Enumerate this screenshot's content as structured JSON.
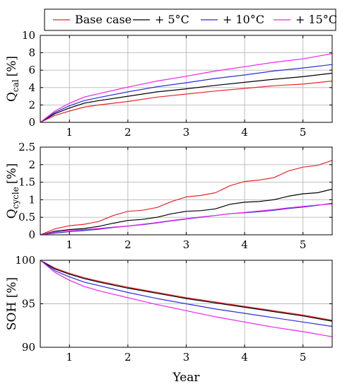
{
  "legend": {
    "position": "top",
    "entries": [
      {
        "label": "Base case",
        "color": "#e8262b"
      },
      {
        "label": "+ 5°C",
        "color": "#000000"
      },
      {
        "label": "+ 10°C",
        "color": "#2b2fd6"
      },
      {
        "label": "+ 15°C",
        "color": "#ee22ee"
      }
    ]
  },
  "chart_data": [
    {
      "type": "line",
      "id": "qcal",
      "ylabel": "Q",
      "ylabel_sub": "cal",
      "ylabel_unit": "[%]",
      "xlim": [
        0.5,
        5.5
      ],
      "ylim": [
        0,
        10
      ],
      "yticks": [
        0,
        2,
        4,
        6,
        8,
        10
      ],
      "xticks": [
        1,
        2,
        3,
        4,
        5
      ],
      "grid": true,
      "x": [
        0.5,
        0.75,
        1,
        1.25,
        1.5,
        2,
        2.5,
        3,
        3.5,
        4,
        4.5,
        5,
        5.5
      ],
      "series": [
        {
          "name": "Base case",
          "color": "#e8262b",
          "values": [
            0,
            0.8,
            1.3,
            1.75,
            2.0,
            2.4,
            2.9,
            3.25,
            3.6,
            3.9,
            4.2,
            4.4,
            4.75
          ]
        },
        {
          "name": "+ 5°C",
          "color": "#000000",
          "values": [
            0,
            1.0,
            1.65,
            2.2,
            2.5,
            3.0,
            3.5,
            3.85,
            4.25,
            4.6,
            4.95,
            5.25,
            5.65
          ]
        },
        {
          "name": "+ 10°C",
          "color": "#2b2fd6",
          "values": [
            0,
            1.15,
            1.9,
            2.5,
            2.85,
            3.5,
            4.1,
            4.55,
            5.05,
            5.45,
            5.9,
            6.25,
            6.65
          ]
        },
        {
          "name": "+ 15°C",
          "color": "#ee22ee",
          "values": [
            0,
            1.3,
            2.2,
            2.9,
            3.3,
            4.05,
            4.75,
            5.3,
            5.9,
            6.4,
            6.9,
            7.3,
            7.9
          ]
        }
      ]
    },
    {
      "type": "line",
      "id": "qcycle",
      "ylabel": "Q",
      "ylabel_sub": "cycle",
      "ylabel_unit": "[%]",
      "xlim": [
        0.5,
        5.5
      ],
      "ylim": [
        0,
        2.5
      ],
      "yticks": [
        0,
        0.5,
        1,
        1.5,
        2,
        2.5
      ],
      "xticks": [
        1,
        2,
        3,
        4,
        5
      ],
      "grid": true,
      "x": [
        0.5,
        0.75,
        1,
        1.25,
        1.5,
        1.75,
        2,
        2.25,
        2.5,
        2.75,
        3,
        3.25,
        3.5,
        3.75,
        4,
        4.25,
        4.5,
        4.75,
        5,
        5.25,
        5.5
      ],
      "series": [
        {
          "name": "Base case",
          "color": "#e8262b",
          "values": [
            0,
            0.17,
            0.26,
            0.3,
            0.38,
            0.55,
            0.67,
            0.7,
            0.78,
            0.95,
            1.08,
            1.12,
            1.2,
            1.4,
            1.52,
            1.56,
            1.63,
            1.82,
            1.93,
            1.98,
            2.12
          ]
        },
        {
          "name": "+ 5°C",
          "color": "#000000",
          "values": [
            0,
            0.1,
            0.15,
            0.18,
            0.24,
            0.33,
            0.41,
            0.44,
            0.5,
            0.6,
            0.67,
            0.69,
            0.74,
            0.87,
            0.93,
            0.95,
            1.0,
            1.1,
            1.17,
            1.2,
            1.3
          ]
        },
        {
          "name": "+ 10°C",
          "color": "#2b2fd6",
          "values": [
            0,
            0.05,
            0.09,
            0.12,
            0.16,
            0.21,
            0.25,
            0.29,
            0.34,
            0.4,
            0.45,
            0.5,
            0.55,
            0.6,
            0.63,
            0.66,
            0.7,
            0.75,
            0.79,
            0.84,
            0.9
          ]
        },
        {
          "name": "+ 15°C",
          "color": "#ee22ee",
          "values": [
            0,
            0.08,
            0.13,
            0.15,
            0.18,
            0.22,
            0.25,
            0.3,
            0.35,
            0.41,
            0.46,
            0.51,
            0.55,
            0.6,
            0.64,
            0.68,
            0.72,
            0.77,
            0.81,
            0.85,
            0.88
          ]
        }
      ]
    },
    {
      "type": "line",
      "id": "soh",
      "ylabel": "SOH [%]",
      "xlabel": "Year",
      "xlim": [
        0.5,
        5.5
      ],
      "ylim": [
        90,
        100
      ],
      "yticks": [
        90,
        95,
        100
      ],
      "xticks": [
        1,
        2,
        3,
        4,
        5
      ],
      "grid": true,
      "x": [
        0.5,
        0.75,
        1,
        1.25,
        1.5,
        2,
        2.5,
        3,
        3.5,
        4,
        4.5,
        5,
        5.5
      ],
      "series": [
        {
          "name": "Base case",
          "color": "#e8262b",
          "values": [
            100,
            99.1,
            98.5,
            98.0,
            97.6,
            96.9,
            96.3,
            95.7,
            95.2,
            94.7,
            94.2,
            93.7,
            93.1
          ]
        },
        {
          "name": "+ 5°C",
          "color": "#000000",
          "values": [
            100,
            99.0,
            98.4,
            97.9,
            97.5,
            96.8,
            96.2,
            95.6,
            95.1,
            94.6,
            94.1,
            93.6,
            93.0
          ]
        },
        {
          "name": "+ 10°C",
          "color": "#2b2fd6",
          "values": [
            100,
            98.8,
            98.1,
            97.5,
            97.1,
            96.3,
            95.6,
            95.0,
            94.4,
            93.9,
            93.4,
            92.9,
            92.4
          ]
        },
        {
          "name": "+ 15°C",
          "color": "#ee22ee",
          "values": [
            100,
            98.6,
            97.7,
            97.0,
            96.5,
            95.7,
            94.9,
            94.2,
            93.5,
            92.9,
            92.3,
            91.8,
            91.2
          ]
        }
      ]
    }
  ]
}
